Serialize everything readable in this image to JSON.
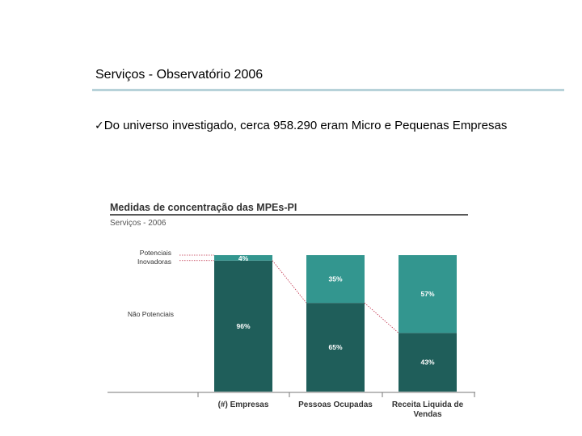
{
  "slide": {
    "title": "Serviços - Observatório 2006",
    "bullet_check": "✓",
    "bullet_text": "Do universo investigado, cerca  958.290 eram Micro e Pequenas Empresas"
  },
  "colors": {
    "title_rule": "#b7d2d9",
    "potenciais": "#33968f",
    "nao_potenciais": "#1f5e5a",
    "connector": "#c0304a"
  },
  "chart_data": {
    "type": "bar",
    "stacked": true,
    "percent": true,
    "title": "Medidas de concentração das MPEs-PI",
    "subtitle": "Serviços - 2006",
    "categories": [
      "(#) Empresas",
      "Pessoas Ocupadas",
      "Receita Liquida de Vendas"
    ],
    "series": [
      {
        "name": "Não Potenciais",
        "values": [
          96,
          65,
          43
        ],
        "labels": [
          "96%",
          "65%",
          "43%"
        ]
      },
      {
        "name": "Potenciais Inovadoras",
        "values": [
          4,
          35,
          57
        ],
        "labels": [
          "4%",
          "35%",
          "57%"
        ]
      }
    ],
    "row_labels": {
      "potenciais": [
        "Potenciais",
        "Inovadoras"
      ],
      "nao_potenciais": "Não Potenciais"
    },
    "ylim": [
      0,
      100
    ]
  }
}
